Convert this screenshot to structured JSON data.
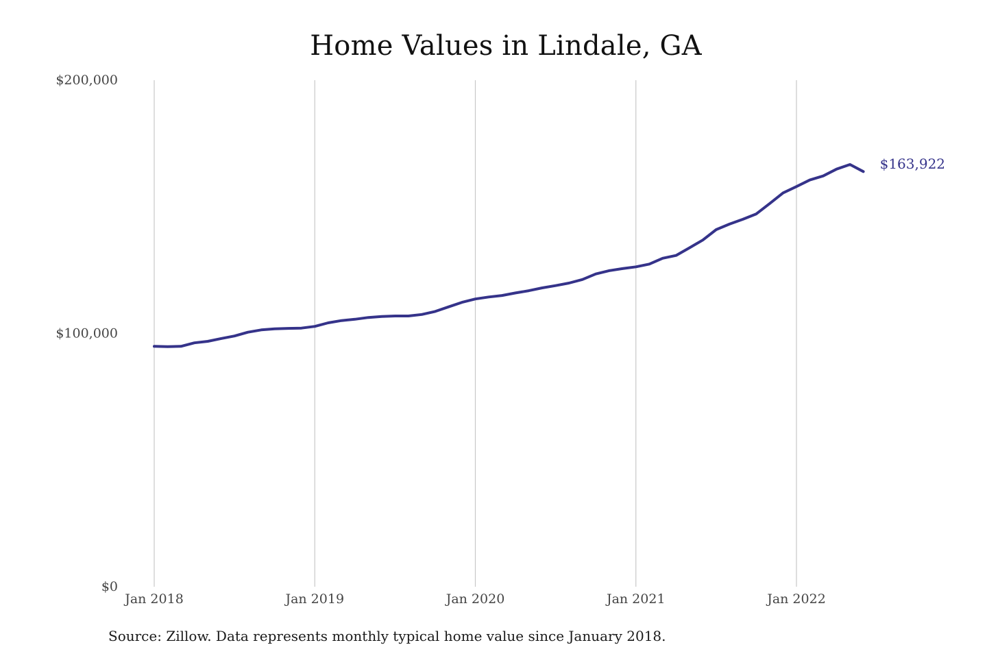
{
  "chart_data": {
    "type": "line",
    "title": "Home Values in Lindale, GA",
    "xlabel": "",
    "ylabel": "",
    "ylim": [
      0,
      200000
    ],
    "yticks": [
      {
        "value": 0,
        "label": "$0"
      },
      {
        "value": 100000,
        "label": "$100,000"
      },
      {
        "value": 200000,
        "label": "$200,000"
      }
    ],
    "xticks": [
      {
        "value": "2018-01",
        "label": "Jan 2018"
      },
      {
        "value": "2019-01",
        "label": "Jan 2019"
      },
      {
        "value": "2020-01",
        "label": "Jan 2020"
      },
      {
        "value": "2021-01",
        "label": "Jan 2021"
      },
      {
        "value": "2022-01",
        "label": "Jan 2022"
      }
    ],
    "grid": "vertical",
    "line_color": "#35338a",
    "end_label": "$163,922",
    "x": [
      "2018-01",
      "2018-02",
      "2018-03",
      "2018-04",
      "2018-05",
      "2018-06",
      "2018-07",
      "2018-08",
      "2018-09",
      "2018-10",
      "2018-11",
      "2018-12",
      "2019-01",
      "2019-02",
      "2019-03",
      "2019-04",
      "2019-05",
      "2019-06",
      "2019-07",
      "2019-08",
      "2019-09",
      "2019-10",
      "2019-11",
      "2019-12",
      "2020-01",
      "2020-02",
      "2020-03",
      "2020-04",
      "2020-05",
      "2020-06",
      "2020-07",
      "2020-08",
      "2020-09",
      "2020-10",
      "2020-11",
      "2020-12",
      "2021-01",
      "2021-02",
      "2021-03",
      "2021-04",
      "2021-05",
      "2021-06",
      "2021-07",
      "2021-08",
      "2021-09",
      "2021-10",
      "2021-11",
      "2021-12",
      "2022-01",
      "2022-02",
      "2022-03",
      "2022-04",
      "2022-05",
      "2022-06"
    ],
    "series": [
      {
        "values": [
          94900,
          94800,
          94900,
          96300,
          96900,
          98000,
          99000,
          100500,
          101400,
          101800,
          102000,
          102100,
          102800,
          104200,
          105100,
          105600,
          106300,
          106700,
          106900,
          106900,
          107500,
          108700,
          110500,
          112300,
          113600,
          114400,
          115000,
          116000,
          116900,
          118000,
          118900,
          119900,
          121300,
          123500,
          124800,
          125600,
          126300,
          127400,
          129700,
          130800,
          133800,
          136900,
          141000,
          143200,
          145100,
          147200,
          151300,
          155500,
          158000,
          160600,
          162200,
          164900,
          166700,
          163922
        ]
      }
    ]
  },
  "source_note": "Source: Zillow. Data represents monthly typical home value since January 2018."
}
